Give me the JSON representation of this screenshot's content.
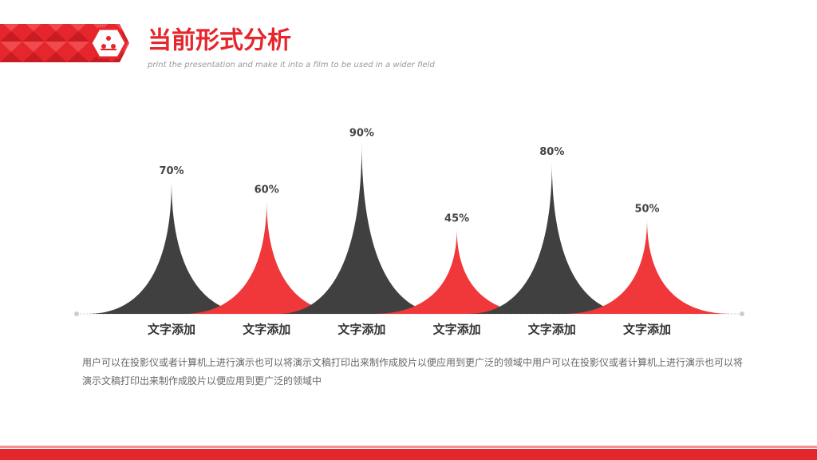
{
  "chart_data": {
    "type": "peak",
    "title": "当前形式分析",
    "subtitle": "print the presentation and make it into a film to be used in a wider field",
    "categories": [
      "文字添加",
      "文字添加",
      "文字添加",
      "文字添加",
      "文字添加",
      "文字添加"
    ],
    "values": [
      70,
      60,
      90,
      45,
      80,
      50
    ],
    "value_labels": [
      "70%",
      "60%",
      "90%",
      "45%",
      "80%",
      "50%"
    ],
    "colors": [
      "#404040",
      "#f0383a",
      "#404040",
      "#f0383a",
      "#404040",
      "#f0383a"
    ],
    "annotation": "用户可以在投影仪或者计算机上进行演示也可以将演示文稿打印出来制作成胶片以便应用到更广泛的领域中用户可以在投影仪或者计算机上进行演示也可以将演示文稿打印出来制作成胶片以便应用到更广泛的领域中"
  }
}
